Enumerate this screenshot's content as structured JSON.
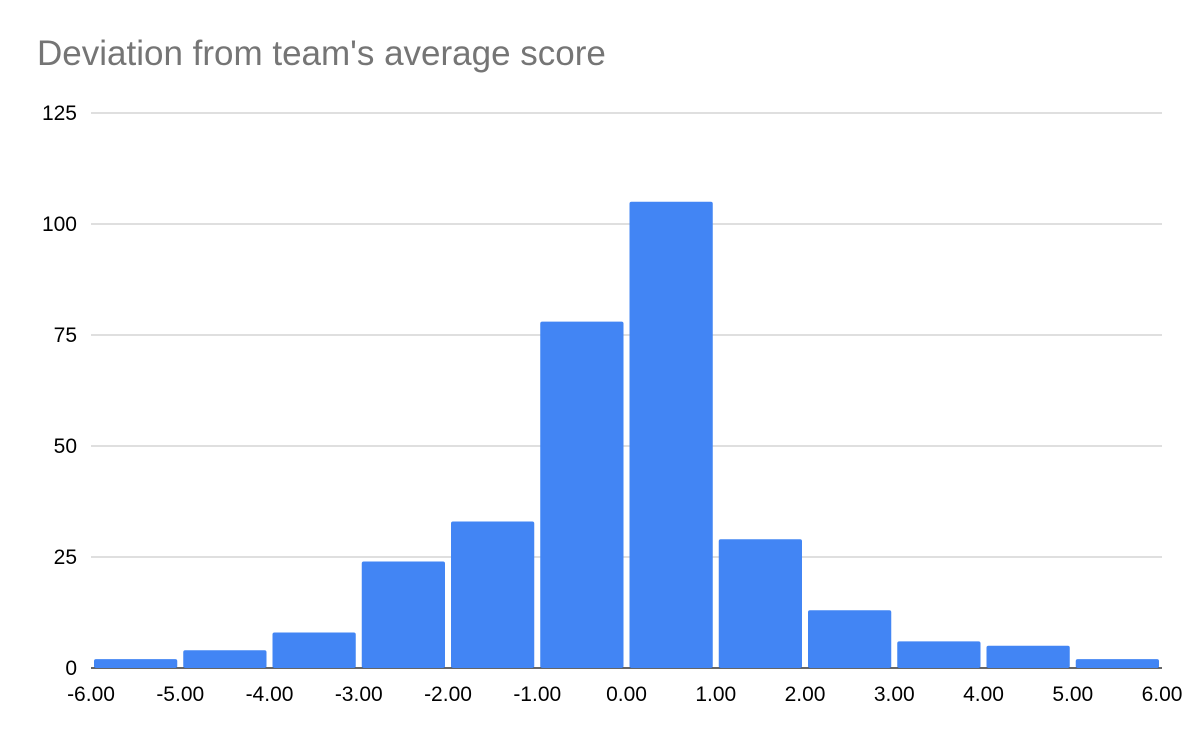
{
  "chart_data": {
    "type": "bar",
    "title": "Deviation from team's average score",
    "xlabel": "",
    "ylabel": "",
    "bins": [
      {
        "from": -6,
        "to": -5,
        "value": 2
      },
      {
        "from": -5,
        "to": -4,
        "value": 4
      },
      {
        "from": -4,
        "to": -3,
        "value": 8
      },
      {
        "from": -3,
        "to": -2,
        "value": 24
      },
      {
        "from": -2,
        "to": -1,
        "value": 33
      },
      {
        "from": -1,
        "to": 0,
        "value": 78
      },
      {
        "from": 0,
        "to": 1,
        "value": 105
      },
      {
        "from": 1,
        "to": 2,
        "value": 29
      },
      {
        "from": 2,
        "to": 3,
        "value": 13
      },
      {
        "from": 3,
        "to": 4,
        "value": 6
      },
      {
        "from": 4,
        "to": 5,
        "value": 5
      },
      {
        "from": 5,
        "to": 6,
        "value": 2
      }
    ],
    "xlim": [
      -6,
      6
    ],
    "ylim": [
      0,
      125
    ],
    "x_ticks": [
      "-6.00",
      "-5.00",
      "-4.00",
      "-3.00",
      "-2.00",
      "-1.00",
      "0.00",
      "1.00",
      "2.00",
      "3.00",
      "4.00",
      "5.00",
      "6.00"
    ],
    "y_ticks": [
      "0",
      "25",
      "50",
      "75",
      "100",
      "125"
    ],
    "grid": true,
    "legend": "none",
    "bar_color": "#4285f4"
  }
}
